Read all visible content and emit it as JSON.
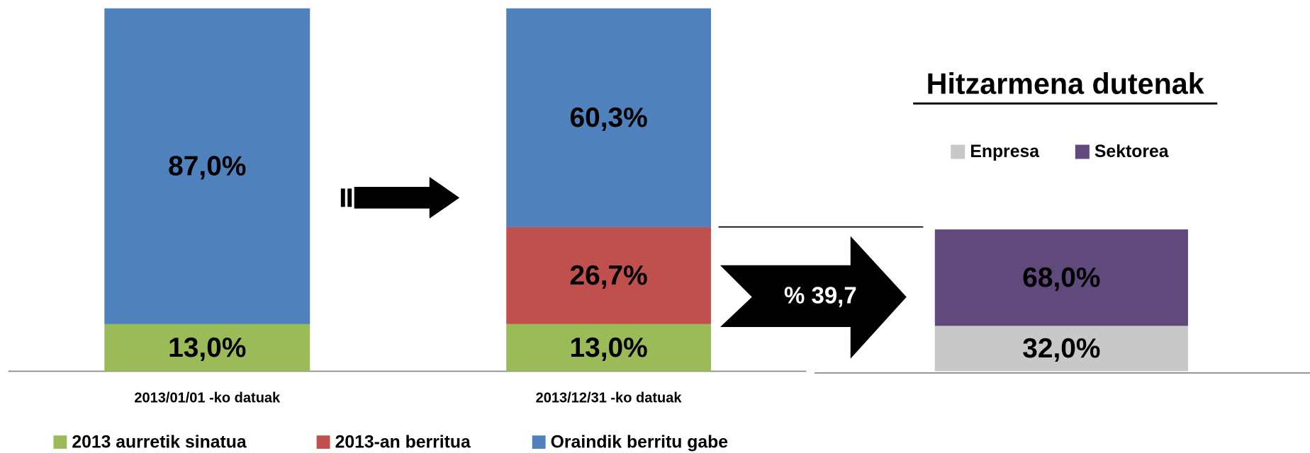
{
  "chart_data": [
    {
      "type": "stacked_bar",
      "categories": [
        "2013/01/01 -ko datuak",
        "2013/12/31 -ko datuak"
      ],
      "series": [
        {
          "name": "2013 aurretik sinatua",
          "color": "#9bbb59",
          "values": [
            13.0,
            13.0
          ],
          "value_labels": [
            "13,0%",
            "13,0%"
          ]
        },
        {
          "name": "2013-an berritua",
          "color": "#c0504d",
          "values": [
            null,
            26.7
          ],
          "value_labels": [
            null,
            "26,7%"
          ]
        },
        {
          "name": "Oraindik berritu gabe",
          "color": "#4f81bd",
          "values": [
            87.0,
            60.3
          ],
          "value_labels": [
            "87,0%",
            "60,3%"
          ]
        }
      ]
    },
    {
      "type": "stacked_bar",
      "title": "Hitzarmena dutenak",
      "annotation": "% 39,7",
      "categories": [
        null
      ],
      "series": [
        {
          "name": "Enpresa",
          "color": "#c8c8c8",
          "values": [
            32.0
          ],
          "value_labels": [
            "32,0%"
          ]
        },
        {
          "name": "Sektorea",
          "color": "#604a7b",
          "values": [
            68.0
          ],
          "value_labels": [
            "68,0%"
          ]
        }
      ]
    }
  ]
}
